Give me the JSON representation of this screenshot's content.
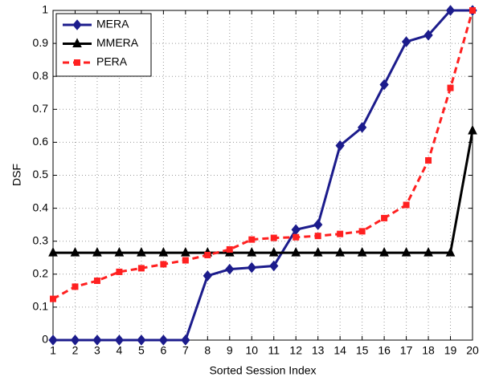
{
  "chart_data": {
    "type": "line",
    "xlabel": "Sorted Session Index",
    "ylabel": "DSF",
    "x": [
      1,
      2,
      3,
      4,
      5,
      6,
      7,
      8,
      9,
      10,
      11,
      12,
      13,
      14,
      15,
      16,
      17,
      18,
      19,
      20
    ],
    "series": [
      {
        "name": "MERA",
        "color": "#1c1c8c",
        "marker": "diamond",
        "linestyle": "solid",
        "values": [
          0,
          0,
          0,
          0,
          0,
          0,
          0,
          0.195,
          0.215,
          0.22,
          0.225,
          0.335,
          0.35,
          0.59,
          0.645,
          0.775,
          0.905,
          0.925,
          1,
          1
        ]
      },
      {
        "name": "MMERA",
        "color": "#000000",
        "marker": "triangle",
        "linestyle": "solid",
        "values": [
          0.265,
          0.265,
          0.265,
          0.265,
          0.265,
          0.265,
          0.265,
          0.265,
          0.265,
          0.265,
          0.265,
          0.265,
          0.265,
          0.265,
          0.265,
          0.265,
          0.265,
          0.265,
          0.265,
          0.635
        ]
      },
      {
        "name": "PERA",
        "color": "#ff2020",
        "marker": "square",
        "linestyle": "dashed",
        "values": [
          0.125,
          0.162,
          0.18,
          0.207,
          0.218,
          0.23,
          0.242,
          0.258,
          0.275,
          0.305,
          0.31,
          0.312,
          0.316,
          0.322,
          0.33,
          0.37,
          0.41,
          0.545,
          0.765,
          1
        ]
      }
    ],
    "xlim": [
      1,
      20
    ],
    "xticks": [
      1,
      2,
      3,
      4,
      5,
      6,
      7,
      8,
      9,
      10,
      11,
      12,
      13,
      14,
      15,
      16,
      17,
      18,
      19,
      20
    ],
    "ylim": [
      0,
      1
    ],
    "yticks": [
      0,
      0.1,
      0.2,
      0.3,
      0.4,
      0.5,
      0.6,
      0.7,
      0.8,
      0.9,
      1
    ],
    "grid": true,
    "legend": "upper-left"
  }
}
